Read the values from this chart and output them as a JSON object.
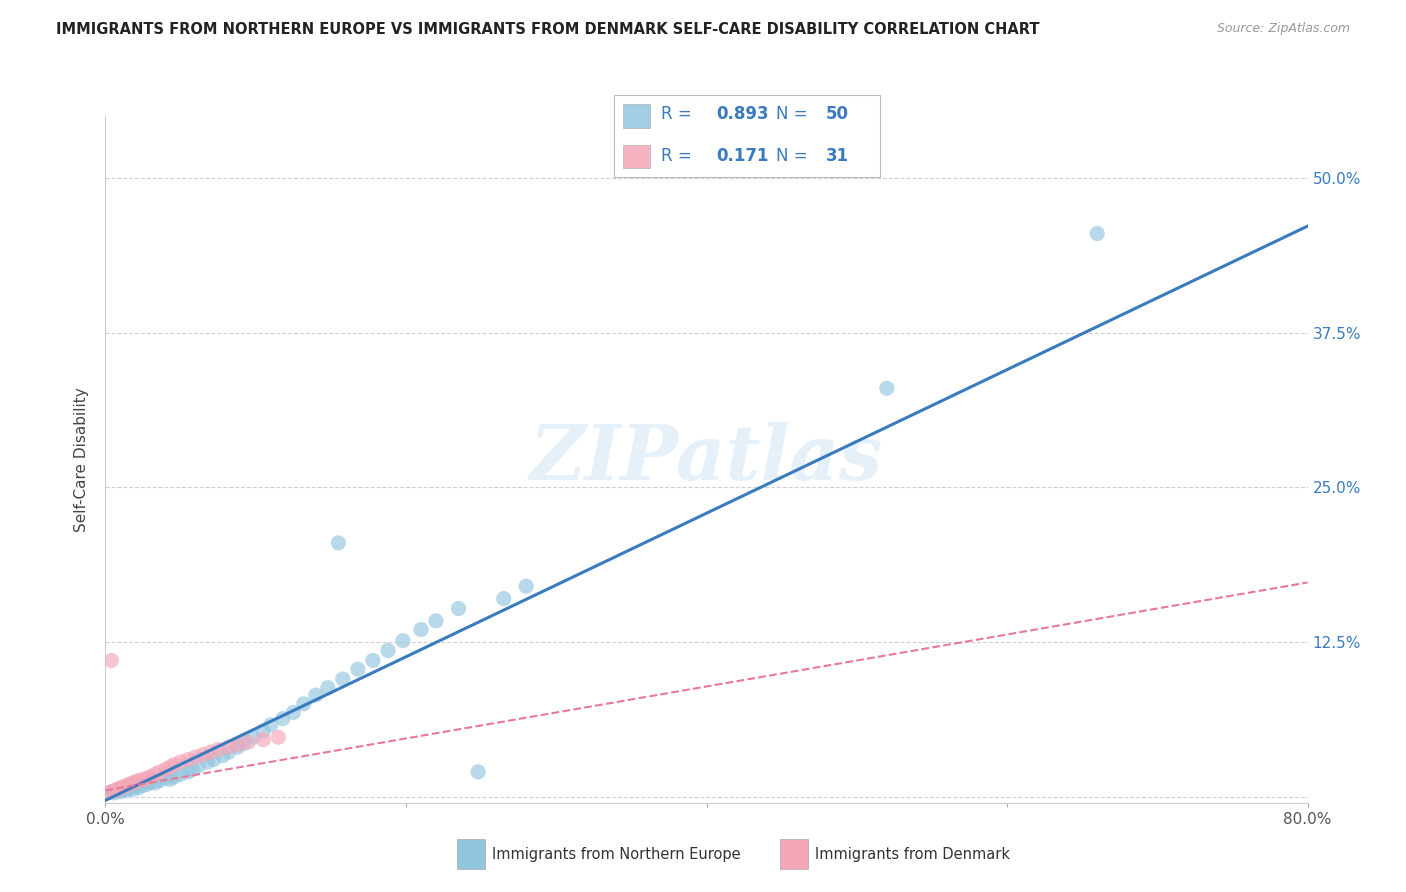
{
  "title": "IMMIGRANTS FROM NORTHERN EUROPE VS IMMIGRANTS FROM DENMARK SELF-CARE DISABILITY CORRELATION CHART",
  "source": "Source: ZipAtlas.com",
  "ylabel": "Self-Care Disability",
  "xlim": [
    0,
    0.8
  ],
  "ylim": [
    -0.005,
    0.55
  ],
  "yticks": [
    0.0,
    0.125,
    0.25,
    0.375,
    0.5
  ],
  "ytick_labels": [
    "",
    "12.5%",
    "25.0%",
    "37.5%",
    "50.0%"
  ],
  "xticks": [
    0.0,
    0.2,
    0.4,
    0.6,
    0.8
  ],
  "xtick_labels": [
    "0.0%",
    "",
    "",
    "",
    "80.0%"
  ],
  "blue_R": 0.893,
  "blue_N": 50,
  "pink_R": 0.171,
  "pink_N": 31,
  "blue_color": "#92c5de",
  "pink_color": "#f4a6b8",
  "blue_line_color": "#3a7bbf",
  "pink_line_color": "#e8789a",
  "text_color": "#3a7bbf",
  "legend_label_blue": "Immigrants from Northern Europe",
  "legend_label_pink": "Immigrants from Denmark",
  "watermark": "ZIPatlas",
  "blue_line_slope": 0.58,
  "blue_line_intercept": -0.003,
  "pink_line_slope": 0.21,
  "pink_line_intercept": 0.005,
  "blue_scatter_x": [
    0.004,
    0.006,
    0.008,
    0.01,
    0.012,
    0.014,
    0.016,
    0.018,
    0.02,
    0.022,
    0.025,
    0.028,
    0.03,
    0.033,
    0.036,
    0.04,
    0.043,
    0.046,
    0.05,
    0.055,
    0.058,
    0.062,
    0.068,
    0.072,
    0.078,
    0.082,
    0.088,
    0.092,
    0.098,
    0.105,
    0.11,
    0.118,
    0.125,
    0.132,
    0.14,
    0.148,
    0.158,
    0.168,
    0.178,
    0.188,
    0.198,
    0.21,
    0.22,
    0.235,
    0.248,
    0.265,
    0.28,
    0.155,
    0.52,
    0.66
  ],
  "blue_scatter_y": [
    0.004,
    0.003,
    0.005,
    0.004,
    0.006,
    0.005,
    0.007,
    0.006,
    0.008,
    0.007,
    0.009,
    0.01,
    0.012,
    0.011,
    0.013,
    0.015,
    0.014,
    0.016,
    0.018,
    0.02,
    0.022,
    0.025,
    0.028,
    0.03,
    0.033,
    0.036,
    0.04,
    0.043,
    0.048,
    0.053,
    0.058,
    0.063,
    0.068,
    0.075,
    0.082,
    0.088,
    0.095,
    0.103,
    0.11,
    0.118,
    0.126,
    0.135,
    0.142,
    0.152,
    0.02,
    0.16,
    0.17,
    0.205,
    0.33,
    0.455
  ],
  "pink_scatter_x": [
    0.002,
    0.004,
    0.006,
    0.008,
    0.01,
    0.012,
    0.014,
    0.016,
    0.018,
    0.02,
    0.022,
    0.025,
    0.028,
    0.03,
    0.033,
    0.036,
    0.04,
    0.043,
    0.046,
    0.05,
    0.055,
    0.06,
    0.065,
    0.07,
    0.075,
    0.082,
    0.088,
    0.095,
    0.105,
    0.115,
    0.004
  ],
  "pink_scatter_y": [
    0.003,
    0.004,
    0.005,
    0.006,
    0.007,
    0.008,
    0.009,
    0.01,
    0.011,
    0.012,
    0.013,
    0.014,
    0.015,
    0.016,
    0.018,
    0.02,
    0.022,
    0.024,
    0.026,
    0.028,
    0.03,
    0.032,
    0.034,
    0.036,
    0.038,
    0.04,
    0.042,
    0.044,
    0.046,
    0.048,
    0.11
  ]
}
